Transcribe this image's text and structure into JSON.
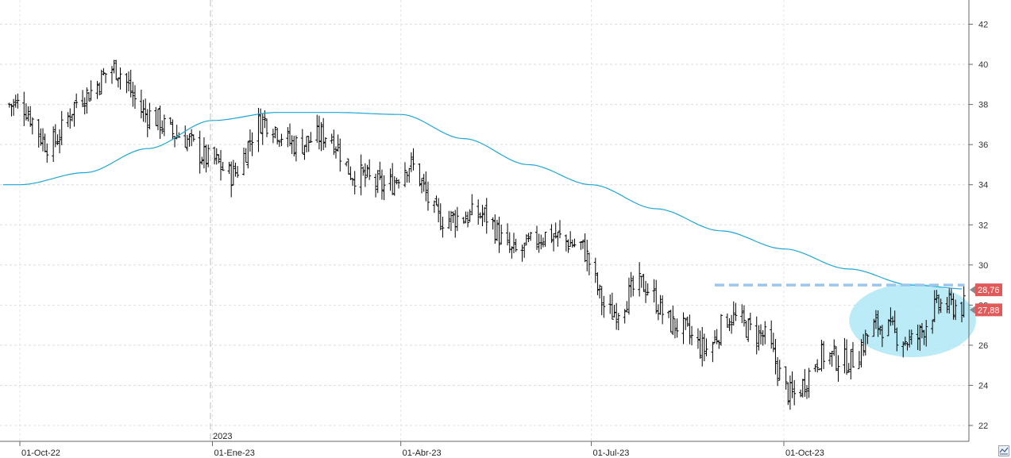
{
  "chart_data": {
    "type": "ohlc-bar",
    "x_axis": {
      "tick_labels": [
        "01-Oct-22",
        "01-Ene-23",
        "01-Abr-23",
        "01-Jul-23",
        "01-Oct-23"
      ],
      "year_marker": "2023"
    },
    "y_axis": {
      "range": [
        21,
        43
      ],
      "ticks": [
        "22",
        "24",
        "26",
        "28",
        "30",
        "32",
        "34",
        "36",
        "38",
        "40",
        "42"
      ],
      "position": "right"
    },
    "grid": true,
    "colors": {
      "price_bars": "#000000",
      "moving_average": "#1fa6d6",
      "resistance_line": "#9cc7ec",
      "highlight_ellipse": "#aee8f5",
      "badge": "#e05a5a"
    },
    "price_series_approx": [
      [
        "01-Oct-22",
        38.0
      ],
      [
        "15-Oct-22",
        36.0
      ],
      [
        "01-Nov-22",
        38.5
      ],
      [
        "15-Nov-22",
        39.8
      ],
      [
        "01-Dic-22",
        37.5
      ],
      [
        "15-Dic-22",
        36.5
      ],
      [
        "01-Ene-23",
        35.2
      ],
      [
        "10-Ene-23",
        34.5
      ],
      [
        "25-Ene-23",
        37.2
      ],
      [
        "10-Feb-23",
        36.0
      ],
      [
        "25-Feb-23",
        36.5
      ],
      [
        "10-Mar-23",
        34.5
      ],
      [
        "25-Mar-23",
        33.9
      ],
      [
        "05-Abr-23",
        35.0
      ],
      [
        "20-Abr-23",
        32.3
      ],
      [
        "10-May-23",
        32.5
      ],
      [
        "25-May-23",
        30.6
      ],
      [
        "10-Jun-23",
        31.5
      ],
      [
        "25-Jun-23",
        31.0
      ],
      [
        "10-Jul-23",
        27.6
      ],
      [
        "25-Jul-23",
        29.0
      ],
      [
        "10-Ago-23",
        27.0
      ],
      [
        "25-Ago-23",
        25.8
      ],
      [
        "05-Sep-23",
        27.4
      ],
      [
        "20-Sep-23",
        26.5
      ],
      [
        "05-Oct-23",
        23.5
      ],
      [
        "20-Oct-23",
        25.5
      ],
      [
        "01-Nov-23",
        25.2
      ],
      [
        "15-Nov-23",
        27.0
      ],
      [
        "01-Dic-23",
        26.2
      ],
      [
        "15-Dic-23",
        28.0
      ],
      [
        "28-Dic-23",
        27.9
      ]
    ],
    "moving_average_approx": [
      [
        "01-Oct-22",
        34.0
      ],
      [
        "01-Nov-22",
        34.6
      ],
      [
        "01-Dic-22",
        35.8
      ],
      [
        "01-Ene-23",
        37.2
      ],
      [
        "01-Feb-23",
        37.6
      ],
      [
        "01-Mar-23",
        37.6
      ],
      [
        "01-Abr-23",
        37.5
      ],
      [
        "01-May-23",
        36.3
      ],
      [
        "01-Jun-23",
        35.0
      ],
      [
        "01-Jul-23",
        34.0
      ],
      [
        "01-Ago-23",
        32.8
      ],
      [
        "01-Sep-23",
        31.7
      ],
      [
        "01-Oct-23",
        30.8
      ],
      [
        "01-Nov-23",
        29.8
      ],
      [
        "01-Dic-23",
        29.0
      ],
      [
        "28-Dic-23",
        28.8
      ]
    ],
    "resistance_level": 29.0,
    "highlight_region": {
      "x_from": "05-Nov-23",
      "x_to": "28-Dic-23",
      "y_from": 25.8,
      "y_to": 29.0
    },
    "price_badges": [
      {
        "label": "28,76",
        "value": 28.76
      },
      {
        "label": "27,88",
        "value": 27.88
      }
    ]
  }
}
